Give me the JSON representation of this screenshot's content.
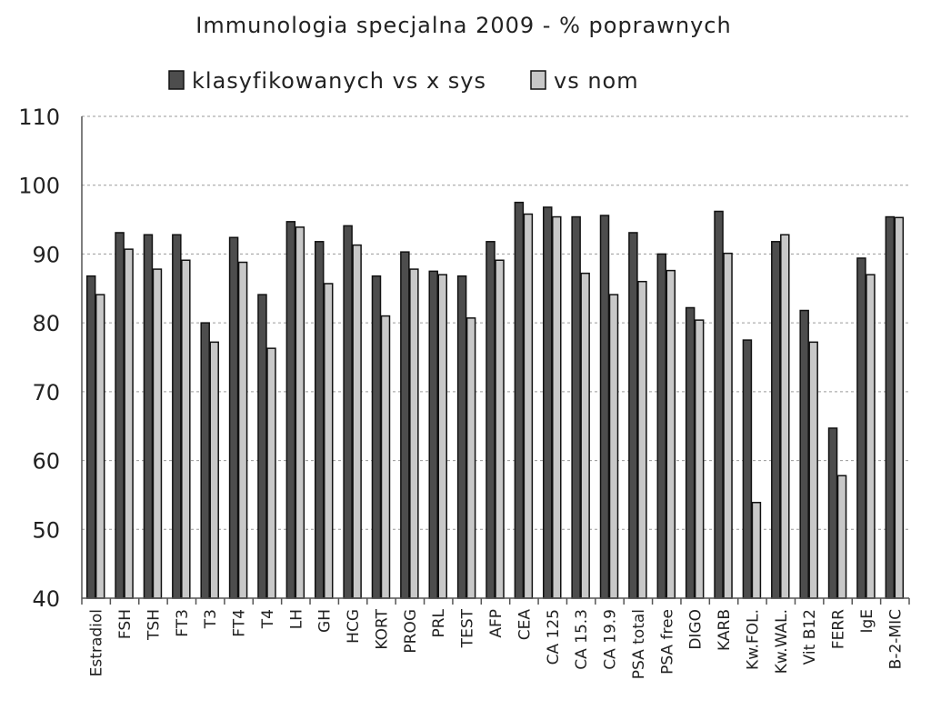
{
  "chart_data": {
    "type": "bar",
    "title": "Immunologia specjalna 2009 - % poprawnych",
    "xlabel": "",
    "ylabel": "",
    "ylim": [
      40,
      110
    ],
    "yticks": [
      40,
      50,
      60,
      70,
      80,
      90,
      100,
      110
    ],
    "grid": true,
    "legend_position": "top",
    "categories": [
      "Estradiol",
      "FSH",
      "TSH",
      "FT3",
      "T3",
      "FT4",
      "T4",
      "LH",
      "GH",
      "HCG",
      "KORT",
      "PROG",
      "PRL",
      "TEST",
      "AFP",
      "CEA",
      "CA 125",
      "CA 15.3",
      "CA 19.9",
      "PSA total",
      "PSA free",
      "DIGO",
      "KARB",
      "Kw.FOL.",
      "Kw.WAL.",
      "Vit B12",
      "FERR",
      "IgE",
      "B-2-MIC"
    ],
    "series": [
      {
        "name": "klasyfikowanych vs x sys",
        "color": "#4d4d4d",
        "values": [
          86.8,
          93.1,
          92.8,
          92.8,
          80.0,
          92.4,
          84.1,
          94.7,
          91.8,
          94.1,
          86.8,
          90.3,
          87.5,
          86.8,
          91.8,
          97.5,
          96.8,
          95.4,
          95.6,
          93.1,
          90.0,
          82.2,
          96.2,
          77.5,
          91.8,
          81.8,
          64.7,
          89.4,
          95.4
        ]
      },
      {
        "name": "vs nom",
        "color": "#c8c8c8",
        "values": [
          84.1,
          90.7,
          87.8,
          89.1,
          77.2,
          88.8,
          76.3,
          93.9,
          85.7,
          91.3,
          81.0,
          87.8,
          87.0,
          80.7,
          89.1,
          95.8,
          95.4,
          87.2,
          84.1,
          86.0,
          87.6,
          80.4,
          90.1,
          53.9,
          92.8,
          77.2,
          57.8,
          87.0,
          95.3
        ]
      }
    ]
  }
}
